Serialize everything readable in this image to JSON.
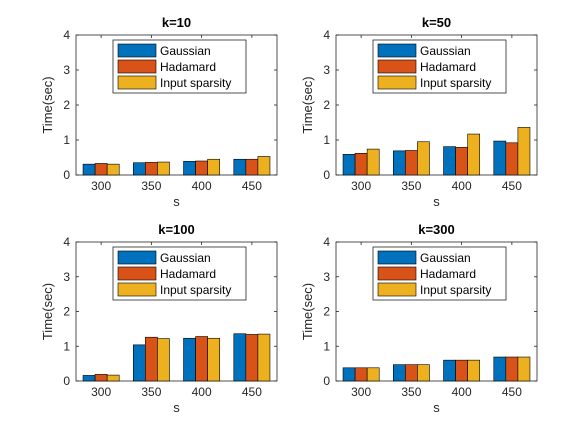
{
  "chart_data": [
    {
      "type": "bar",
      "title": "k=10",
      "xlabel": "s",
      "ylabel": "Time(sec)",
      "categories": [
        "300",
        "350",
        "400",
        "450"
      ],
      "ylim": [
        0,
        4
      ],
      "yticks": [
        "0",
        "1",
        "2",
        "3",
        "4"
      ],
      "legend_position": "top-center",
      "series": [
        {
          "name": "Gaussian",
          "values": [
            0.31,
            0.35,
            0.39,
            0.45
          ]
        },
        {
          "name": "Hadamard",
          "values": [
            0.33,
            0.36,
            0.4,
            0.45
          ]
        },
        {
          "name": "Input sparsity",
          "values": [
            0.31,
            0.37,
            0.45,
            0.53
          ]
        }
      ]
    },
    {
      "type": "bar",
      "title": "k=50",
      "xlabel": "s",
      "ylabel": "Time(sec)",
      "categories": [
        "300",
        "350",
        "400",
        "450"
      ],
      "ylim": [
        0,
        4
      ],
      "yticks": [
        "0",
        "1",
        "2",
        "3",
        "4"
      ],
      "legend_position": "top-center",
      "series": [
        {
          "name": "Gaussian",
          "values": [
            0.59,
            0.69,
            0.81,
            0.97
          ]
        },
        {
          "name": "Hadamard",
          "values": [
            0.62,
            0.7,
            0.79,
            0.92
          ]
        },
        {
          "name": "Input sparsity",
          "values": [
            0.74,
            0.95,
            1.17,
            1.36
          ]
        }
      ]
    },
    {
      "type": "bar",
      "title": "k=100",
      "xlabel": "s",
      "ylabel": "Time(sec)",
      "categories": [
        "300",
        "350",
        "400",
        "450"
      ],
      "ylim": [
        0,
        4
      ],
      "yticks": [
        "0",
        "1",
        "2",
        "3",
        "4"
      ],
      "legend_position": "top-center",
      "series": [
        {
          "name": "Gaussian",
          "values": [
            0.16,
            1.04,
            1.23,
            1.36
          ]
        },
        {
          "name": "Hadamard",
          "values": [
            0.19,
            1.26,
            1.28,
            1.34
          ]
        },
        {
          "name": "Input sparsity",
          "values": [
            0.17,
            1.22,
            1.23,
            1.35
          ]
        }
      ]
    },
    {
      "type": "bar",
      "title": "k=300",
      "xlabel": "s",
      "ylabel": "Time(sec)",
      "categories": [
        "300",
        "350",
        "400",
        "450"
      ],
      "ylim": [
        0,
        4
      ],
      "yticks": [
        "0",
        "1",
        "2",
        "3",
        "4"
      ],
      "legend_position": "top-center",
      "series": [
        {
          "name": "Gaussian",
          "values": [
            0.38,
            0.47,
            0.6,
            0.69
          ]
        },
        {
          "name": "Hadamard",
          "values": [
            0.38,
            0.47,
            0.6,
            0.69
          ]
        },
        {
          "name": "Input sparsity",
          "values": [
            0.38,
            0.47,
            0.6,
            0.69
          ]
        }
      ]
    }
  ],
  "colors": {
    "Gaussian": "#0072BD",
    "Hadamard": "#D95319",
    "Input sparsity": "#EDB120",
    "axis": "#262626"
  }
}
